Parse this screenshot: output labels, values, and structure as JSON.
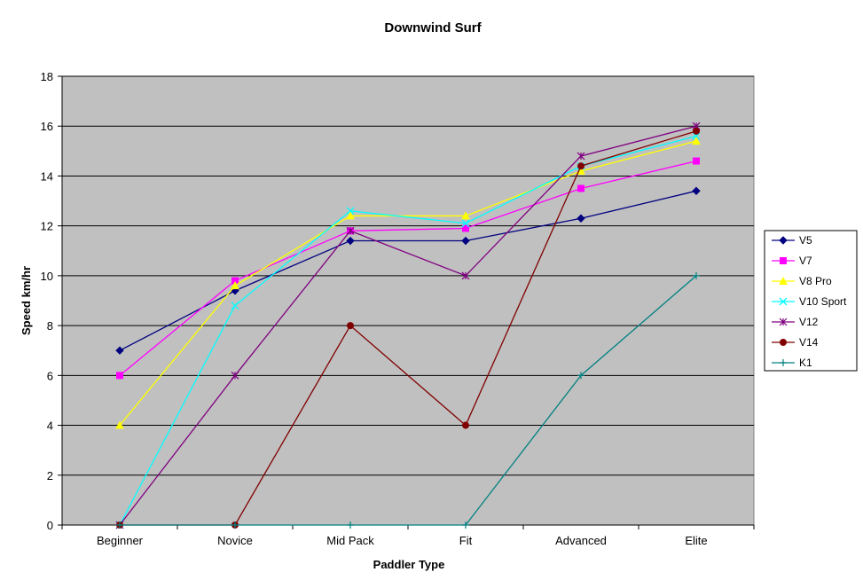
{
  "chart_data": {
    "type": "line",
    "title": "Downwind Surf",
    "xlabel": "Paddler Type",
    "ylabel": "Speed km/hr",
    "categories": [
      "Beginner",
      "Novice",
      "Mid Pack",
      "Fit",
      "Advanced",
      "Elite"
    ],
    "ylim": [
      0,
      18
    ],
    "yticks": [
      0,
      2,
      4,
      6,
      8,
      10,
      12,
      14,
      16,
      18
    ],
    "grid": "horizontal",
    "legend_position": "right",
    "series": [
      {
        "name": "V5",
        "color": "#000080",
        "marker": "diamond",
        "values": [
          7,
          9.4,
          11.4,
          11.4,
          12.3,
          13.4
        ]
      },
      {
        "name": "V7",
        "color": "#FF00FF",
        "marker": "square",
        "values": [
          6,
          9.8,
          11.8,
          11.9,
          13.5,
          14.6
        ]
      },
      {
        "name": "V8 Pro",
        "color": "#FFFF00",
        "marker": "triangle",
        "values": [
          4,
          9.6,
          12.4,
          12.4,
          14.2,
          15.4
        ]
      },
      {
        "name": "V10 Sport",
        "color": "#00FFFF",
        "marker": "x",
        "values": [
          0,
          8.8,
          12.6,
          12.1,
          14.4,
          15.6
        ]
      },
      {
        "name": "V12",
        "color": "#800080",
        "marker": "star",
        "values": [
          0,
          6,
          11.8,
          10,
          14.8,
          16
        ]
      },
      {
        "name": "V14",
        "color": "#800000",
        "marker": "circle",
        "values": [
          0,
          0,
          8,
          4,
          14.4,
          15.8
        ]
      },
      {
        "name": "K1",
        "color": "#008080",
        "marker": "plus",
        "values": [
          0,
          0,
          0,
          0,
          6,
          10
        ]
      }
    ]
  }
}
